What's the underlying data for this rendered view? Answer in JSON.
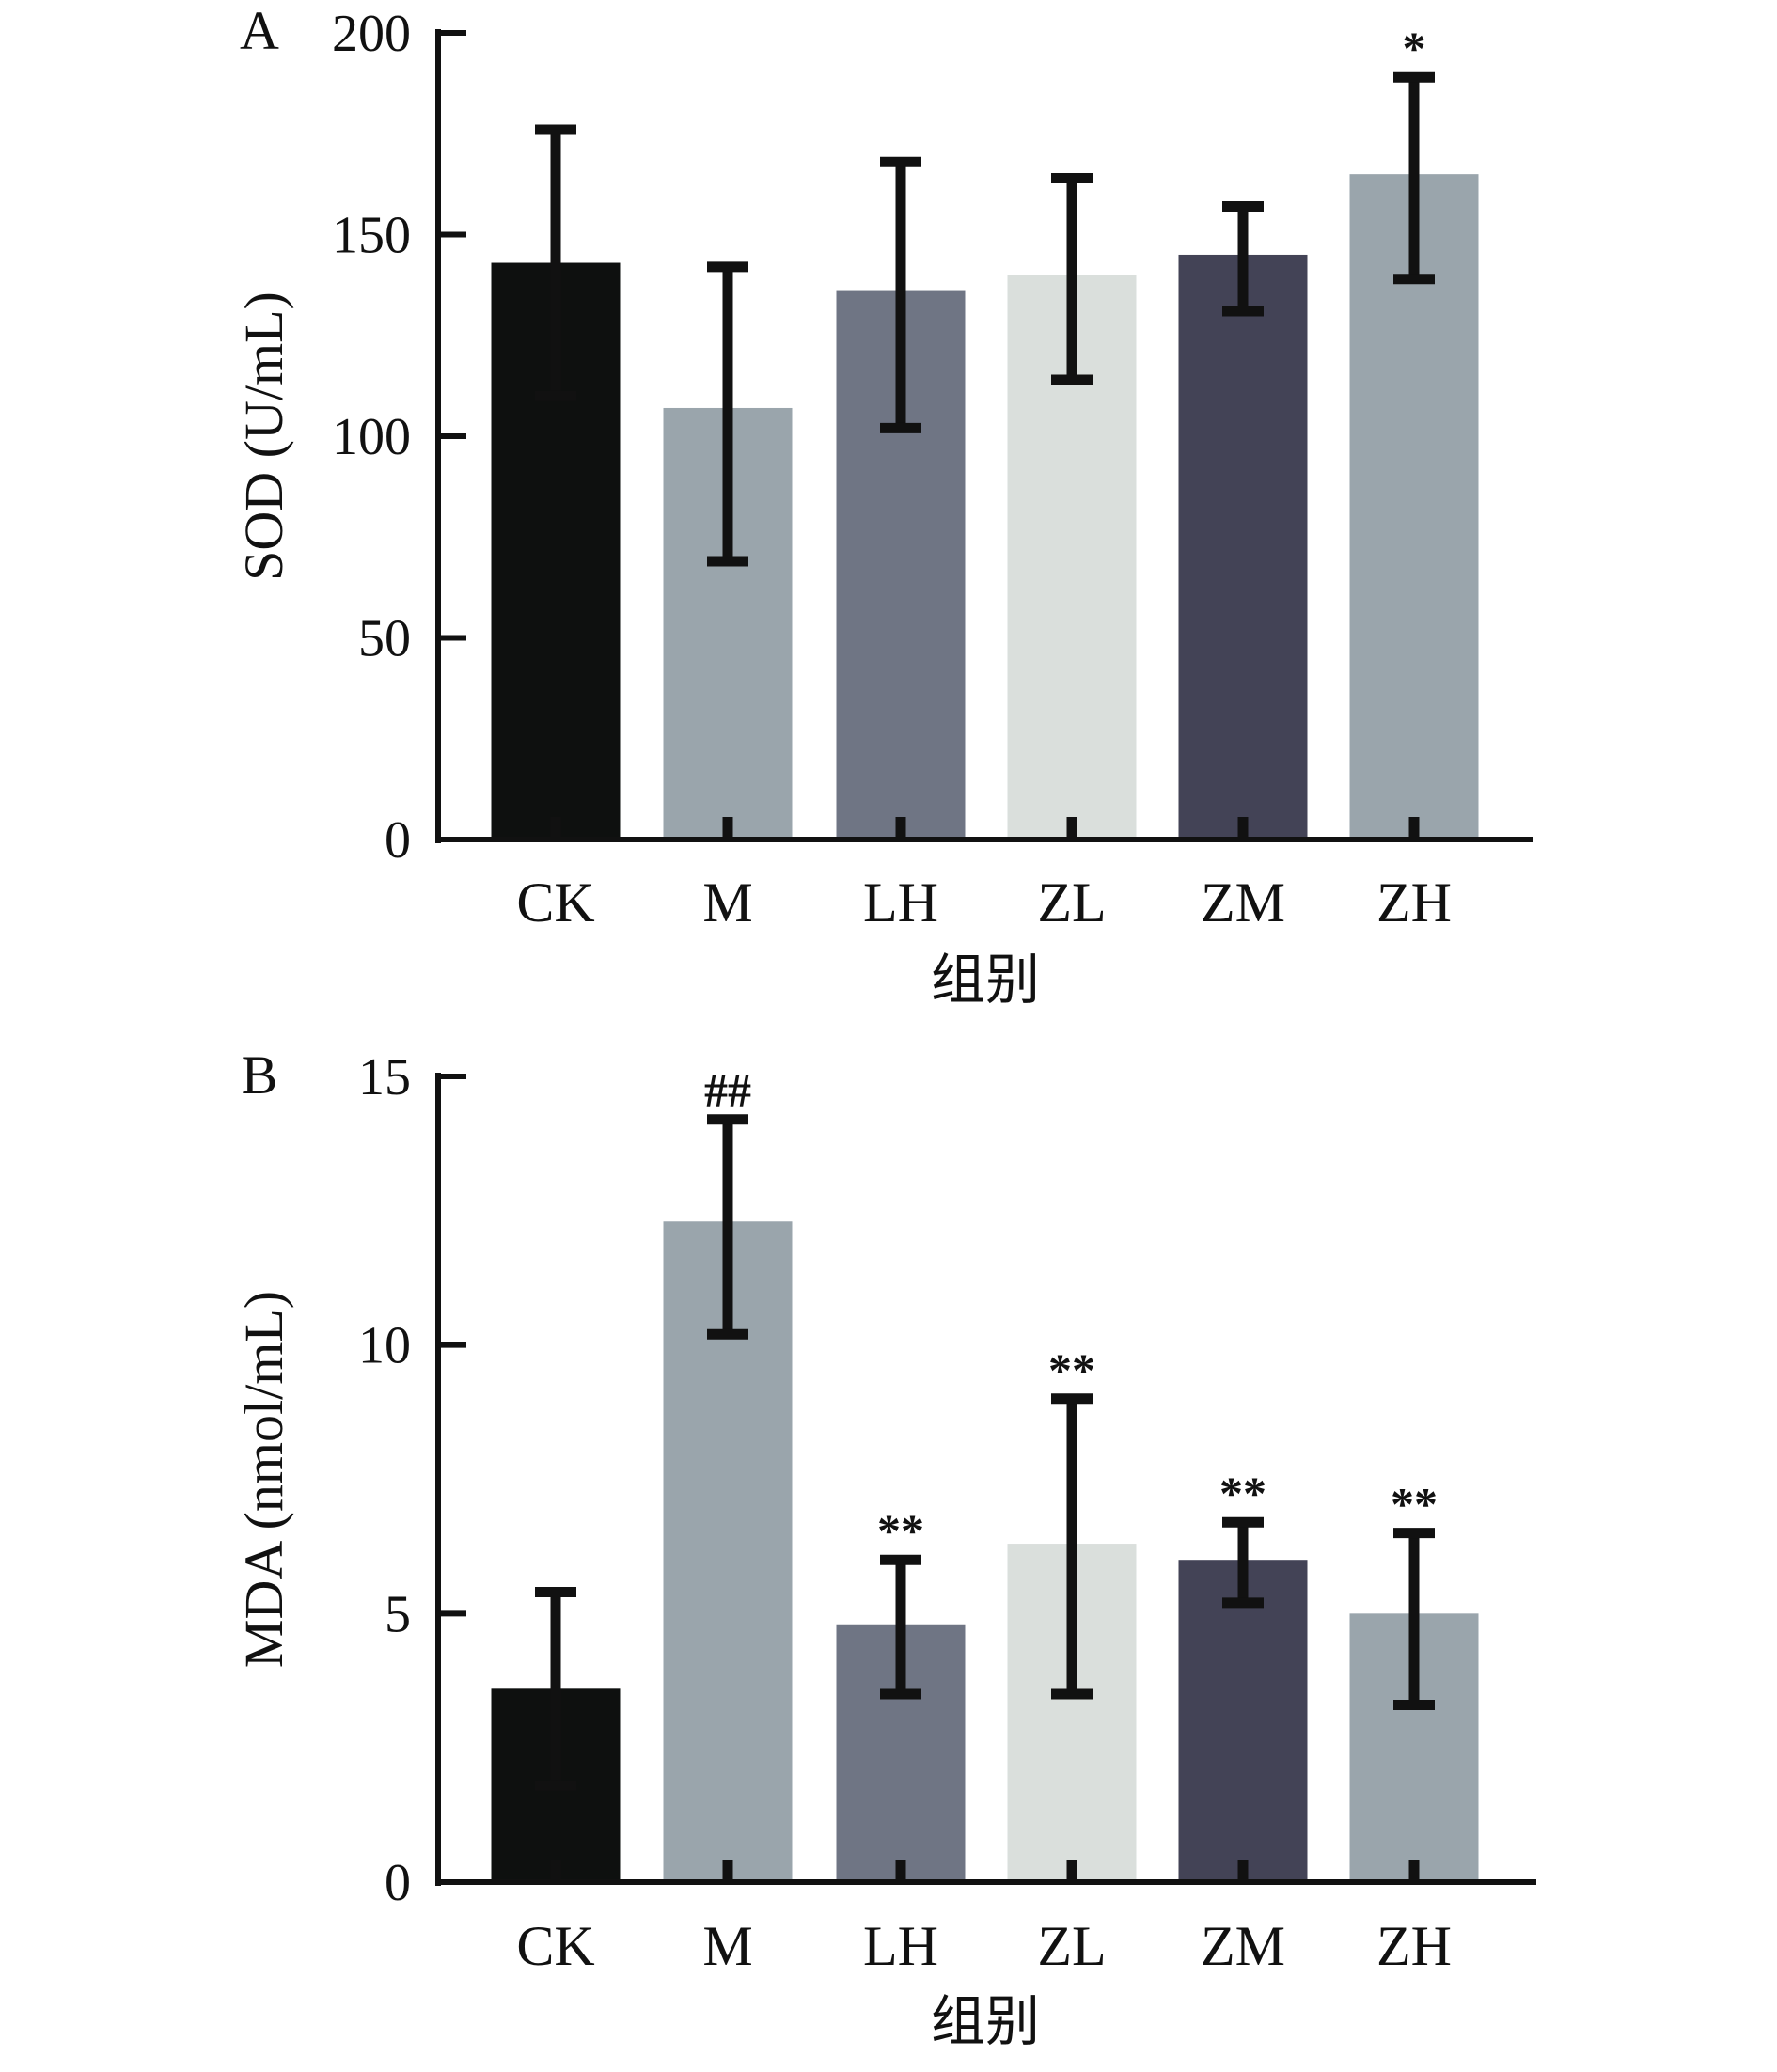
{
  "chart_data": [
    {
      "type": "bar",
      "panel": "A",
      "title": "",
      "xlabel": "组别",
      "ylabel": "SOD (U/mL)",
      "ylim": [
        0,
        200
      ],
      "yticks": [
        0,
        50,
        100,
        150,
        200
      ],
      "categories": [
        "CK",
        "M",
        "LH",
        "ZL",
        "ZM",
        "ZH"
      ],
      "values": [
        143,
        107,
        136,
        140,
        145,
        165
      ],
      "error_low": [
        110,
        69,
        102,
        114,
        131,
        139
      ],
      "error_high": [
        176,
        142,
        168,
        164,
        157,
        189
      ],
      "annotations": [
        "",
        "",
        "",
        "",
        "",
        "*"
      ],
      "colors": [
        "#0e100f",
        "#9aa5ac",
        "#6f7584",
        "#dadfdc",
        "#434356",
        "#9aa5ac"
      ],
      "grid": false
    },
    {
      "type": "bar",
      "panel": "B",
      "title": "",
      "xlabel": "组别",
      "ylabel": "MDA (nmol/mL)",
      "ylim": [
        0,
        15
      ],
      "yticks": [
        0,
        5,
        10,
        15
      ],
      "categories": [
        "CK",
        "M",
        "LH",
        "ZL",
        "ZM",
        "ZH"
      ],
      "values": [
        3.6,
        12.3,
        4.8,
        6.3,
        6.0,
        5.0
      ],
      "error_low": [
        1.8,
        10.2,
        3.5,
        3.5,
        5.2,
        3.3
      ],
      "error_high": [
        5.4,
        14.2,
        6.0,
        9.0,
        6.7,
        6.5
      ],
      "annotations": [
        "",
        "##",
        "**",
        "**",
        "**",
        "**"
      ],
      "colors": [
        "#0e100f",
        "#9aa5ac",
        "#6f7584",
        "#dadfdc",
        "#434356",
        "#9aa5ac"
      ],
      "grid": false
    }
  ]
}
